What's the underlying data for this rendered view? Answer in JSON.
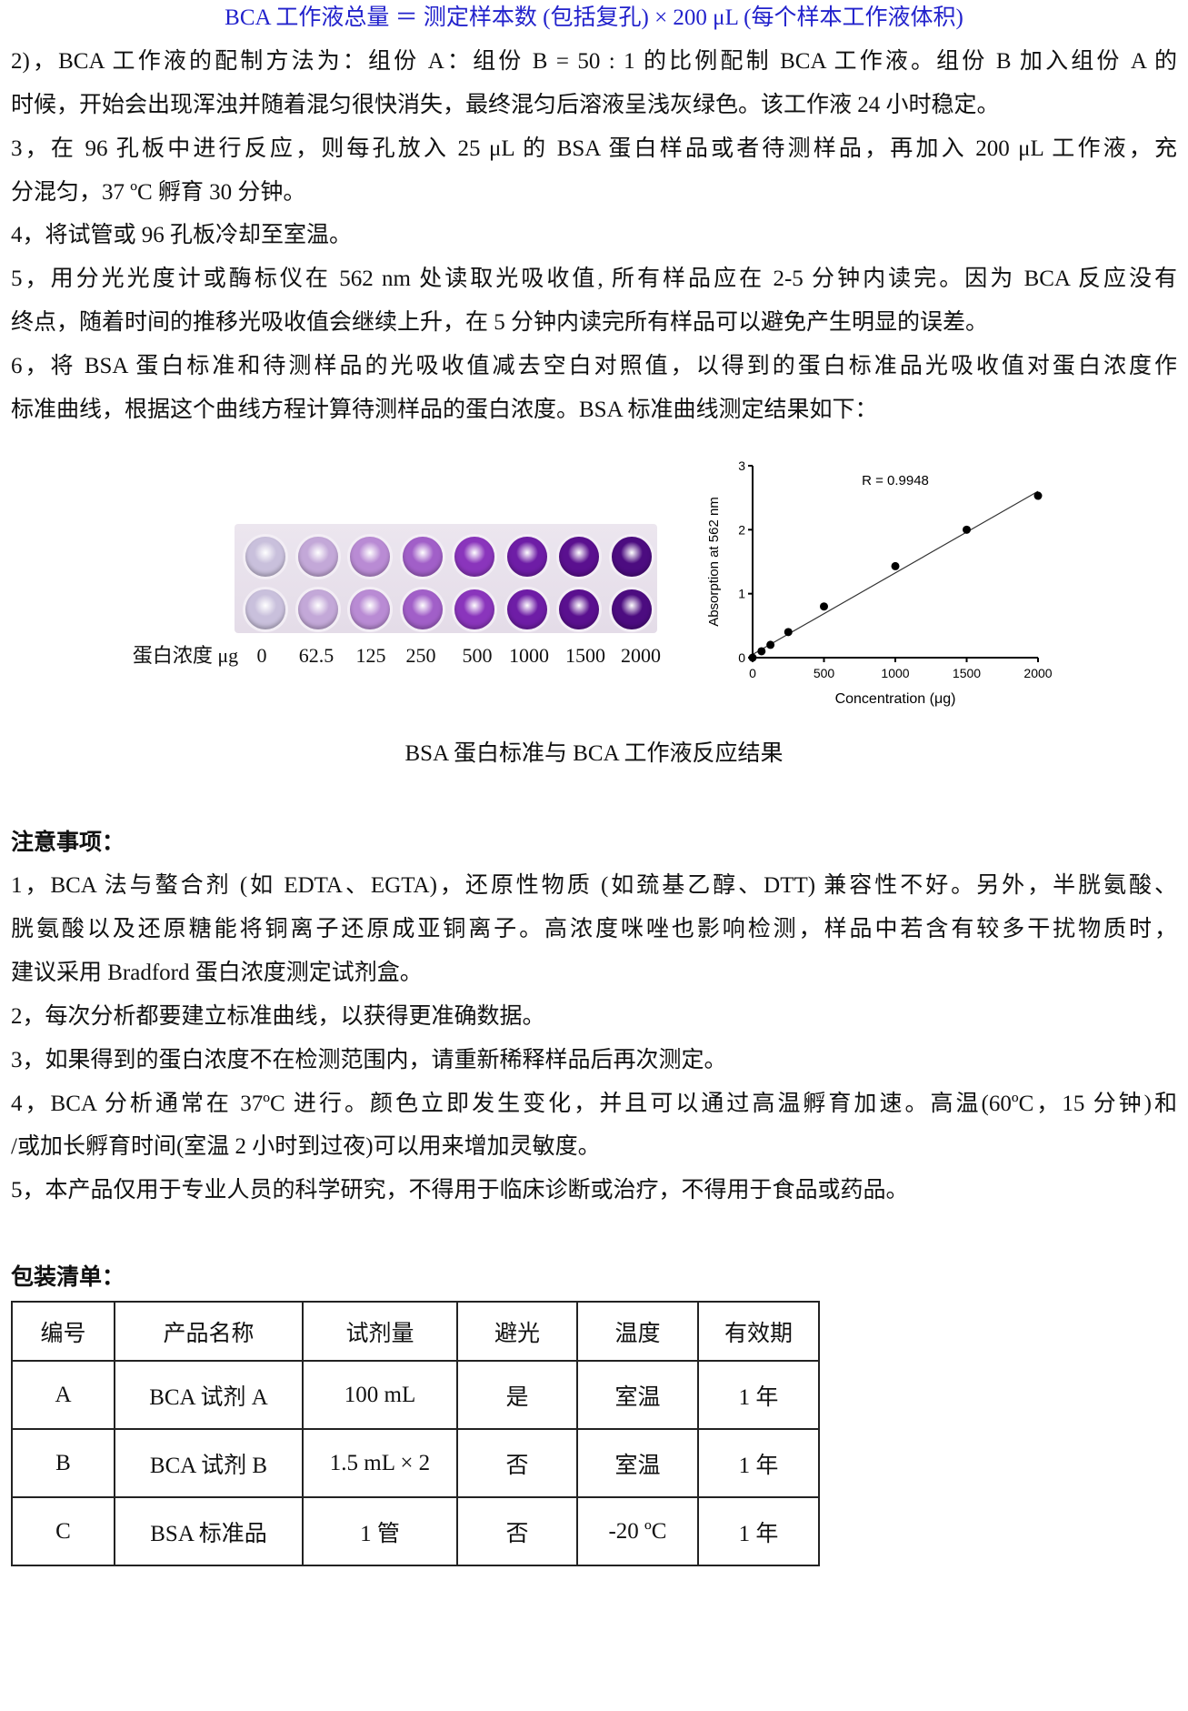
{
  "formula": "BCA 工作液总量 ＝ 测定样本数 (包括复孔) × 200 μL (每个样本工作液体积)",
  "steps": [
    {
      "lines": [
        "2)，BCA 工作液的配制方法为：组份 A：组份 B = 50 : 1 的比例配制 BCA 工作液。组份 B 加入组份 A 的",
        "时候，开始会出现浑浊并随着混匀很快消失，最终混匀后溶液呈浅灰绿色。该工作液 24 小时稳定。"
      ]
    },
    {
      "lines": [
        "3，在 96 孔板中进行反应，则每孔放入 25 μL 的 BSA 蛋白样品或者待测样品，再加入 200 μL 工作液，充",
        "分混匀，37 ºC 孵育 30 分钟。"
      ]
    },
    {
      "lines": [
        "4，将试管或 96 孔板冷却至室温。"
      ]
    },
    {
      "lines": [
        "5，用分光光度计或酶标仪在 562 nm 处读取光吸收值, 所有样品应在 2-5 分钟内读完。因为 BCA 反应没有",
        "终点，随着时间的推移光吸收值会继续上升，在 5 分钟内读完所有样品可以避免产生明显的误差。"
      ]
    },
    {
      "lines": [
        "6，将 BSA 蛋白标准和待测样品的光吸收值减去空白对照值，以得到的蛋白标准品光吸收值对蛋白浓度作",
        "标准曲线，根据这个曲线方程计算待测样品的蛋白浓度。BSA 标准曲线测定结果如下："
      ]
    }
  ],
  "plate": {
    "label": "蛋白浓度 μg",
    "concentrations": [
      "0",
      "62.5",
      "125",
      "250",
      "500",
      "1000",
      "1500",
      "2000"
    ],
    "well_colors": [
      "#c9c0dc",
      "#c3a8d8",
      "#b98bd4",
      "#a15fc8",
      "#8a35bc",
      "#6e1da6",
      "#5a108f",
      "#4c0c80"
    ]
  },
  "chart_data": {
    "type": "scatter",
    "x": [
      0,
      62.5,
      125,
      250,
      500,
      1000,
      1500,
      2000
    ],
    "y": [
      0,
      0.1,
      0.2,
      0.4,
      0.8,
      1.43,
      2.0,
      2.53
    ],
    "fit_line": {
      "x": [
        0,
        2000
      ],
      "y": [
        0.05,
        2.6
      ]
    },
    "annotation": "R = 0.9948",
    "xlabel": "Concentration (μg)",
    "ylabel": "Absorption at 562 nm",
    "xlim": [
      0,
      2000
    ],
    "ylim": [
      0,
      3
    ],
    "xticks": [
      "0",
      "500",
      "1000",
      "1500",
      "2000"
    ],
    "yticks": [
      "0",
      "1",
      "2",
      "3"
    ],
    "grid": false
  },
  "caption": "BSA 蛋白标准与 BCA 工作液反应结果",
  "notes": {
    "heading": "注意事项：",
    "lines": [
      "1，BCA 法与螯合剂 (如 EDTA、EGTA)，还原性物质 (如巯基乙醇、DTT) 兼容性不好。另外，半胱氨酸、",
      "胱氨酸以及还原糖能将铜离子还原成亚铜离子。高浓度咪唑也影响检测，样品中若含有较多干扰物质时，",
      "建议采用  Bradford  蛋白浓度测定试剂盒。",
      "2，每次分析都要建立标准曲线，以获得更准确数据。",
      "3，如果得到的蛋白浓度不在检测范围内，请重新稀释样品后再次测定。",
      "4，BCA 分析通常在 37ºC 进行。颜色立即发生变化，并且可以通过高温孵育加速。高温(60ºC，15 分钟)和",
      "/或加长孵育时间(室温 2 小时到过夜)可以用来增加灵敏度。",
      "5，本产品仅用于专业人员的科学研究，不得用于临床诊断或治疗，不得用于食品或药品。"
    ]
  },
  "packing": {
    "heading": "包装清单：",
    "headers": [
      "编号",
      "产品名称",
      "试剂量",
      "避光",
      "温度",
      "有效期"
    ],
    "rows": [
      [
        "A",
        "BCA 试剂  A",
        "100 mL",
        "是",
        "室温",
        "1 年"
      ],
      [
        "B",
        "BCA 试剂  B",
        "1.5 mL × 2",
        "否",
        "室温",
        "1 年"
      ],
      [
        "C",
        "BSA 标准品",
        "1 管",
        "否",
        "-20 ºC",
        "1 年"
      ]
    ]
  }
}
